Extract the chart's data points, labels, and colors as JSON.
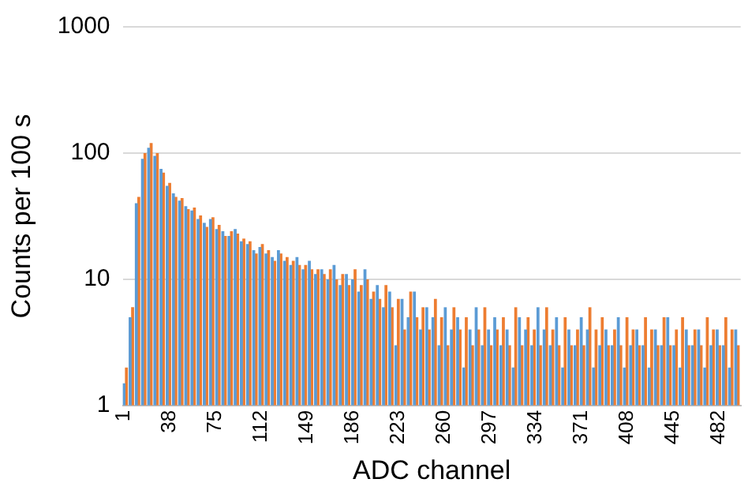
{
  "chart_data": {
    "type": "bar",
    "xlabel": "ADC channel",
    "ylabel": "Counts per 100 s",
    "x": [
      1,
      6,
      11,
      16,
      21,
      26,
      31,
      36,
      41,
      46,
      51,
      56,
      61,
      66,
      71,
      76,
      81,
      86,
      91,
      96,
      101,
      106,
      111,
      116,
      121,
      126,
      131,
      136,
      141,
      146,
      151,
      156,
      161,
      166,
      171,
      176,
      181,
      186,
      191,
      196,
      201,
      206,
      211,
      216,
      221,
      226,
      231,
      236,
      241,
      246,
      251,
      256,
      261,
      266,
      271,
      276,
      281,
      286,
      291,
      296,
      301,
      306,
      311,
      316,
      321,
      326,
      331,
      336,
      341,
      346,
      351,
      356,
      361,
      366,
      371,
      376,
      381,
      386,
      391,
      396,
      401,
      406,
      411,
      416,
      421,
      426,
      431,
      436,
      441,
      446,
      451,
      456,
      461,
      466,
      471,
      476,
      481,
      486,
      491,
      496
    ],
    "series": [
      {
        "color": "#5b9bd5",
        "values": [
          1.5,
          5,
          40,
          90,
          110,
          95,
          75,
          55,
          48,
          42,
          38,
          35,
          30,
          28,
          30,
          25,
          24,
          22,
          25,
          20,
          19,
          17,
          18,
          16,
          15,
          17,
          14,
          13,
          15,
          12,
          14,
          11,
          12,
          10,
          13,
          9,
          11,
          10,
          8,
          12,
          7,
          9,
          6,
          8,
          3,
          7,
          5,
          8,
          4,
          6,
          5,
          3,
          6,
          4,
          5,
          2,
          4,
          6,
          3,
          4,
          5,
          3,
          4,
          2,
          5,
          4,
          3,
          6,
          4,
          3,
          5,
          2,
          4,
          3,
          5,
          4,
          2,
          3,
          4,
          3,
          5,
          2,
          3,
          4,
          3,
          2,
          4,
          3,
          5,
          3,
          2,
          4,
          3,
          4,
          2,
          3,
          4,
          3,
          2,
          4
        ]
      },
      {
        "color": "#ed7d31",
        "x": [
          3,
          8,
          13,
          18,
          23,
          28,
          33,
          38,
          43,
          48,
          53,
          58,
          63,
          68,
          73,
          78,
          83,
          88,
          93,
          98,
          103,
          108,
          113,
          118,
          123,
          128,
          133,
          138,
          143,
          148,
          153,
          158,
          163,
          168,
          173,
          178,
          183,
          188,
          193,
          198,
          203,
          208,
          213,
          218,
          223,
          228,
          233,
          238,
          243,
          248,
          253,
          258,
          263,
          268,
          273,
          278,
          283,
          288,
          293,
          298,
          303,
          308,
          313,
          318,
          323,
          328,
          333,
          338,
          343,
          348,
          353,
          358,
          363,
          368,
          373,
          378,
          383,
          388,
          393,
          398,
          403,
          408,
          413,
          418,
          423,
          428,
          433,
          438,
          443,
          448,
          453,
          458,
          463,
          468,
          473,
          478,
          483,
          488,
          493,
          498
        ],
        "values": [
          2,
          6,
          45,
          100,
          120,
          100,
          70,
          58,
          45,
          44,
          36,
          37,
          32,
          26,
          31,
          27,
          22,
          24,
          23,
          21,
          20,
          16,
          19,
          17,
          14,
          16,
          15,
          14,
          13,
          13,
          12,
          12,
          11,
          12,
          10,
          11,
          9,
          12,
          9,
          10,
          8,
          7,
          9,
          6,
          7,
          4,
          8,
          5,
          6,
          4,
          7,
          5,
          3,
          6,
          4,
          5,
          3,
          4,
          6,
          3,
          4,
          5,
          3,
          6,
          3,
          5,
          4,
          3,
          6,
          4,
          3,
          5,
          3,
          4,
          3,
          6,
          4,
          5,
          3,
          4,
          3,
          5,
          4,
          3,
          5,
          4,
          3,
          5,
          3,
          4,
          5,
          3,
          4,
          3,
          5,
          4,
          3,
          5,
          4,
          3
        ]
      }
    ],
    "xlim": [
      0,
      500
    ],
    "xticks": [
      1,
      38,
      75,
      112,
      149,
      186,
      223,
      260,
      297,
      334,
      371,
      408,
      445,
      482
    ],
    "ylim": [
      1,
      1000
    ],
    "yticks": [
      1,
      10,
      100,
      1000
    ],
    "log": "y",
    "grid": "y",
    "legend": false
  }
}
